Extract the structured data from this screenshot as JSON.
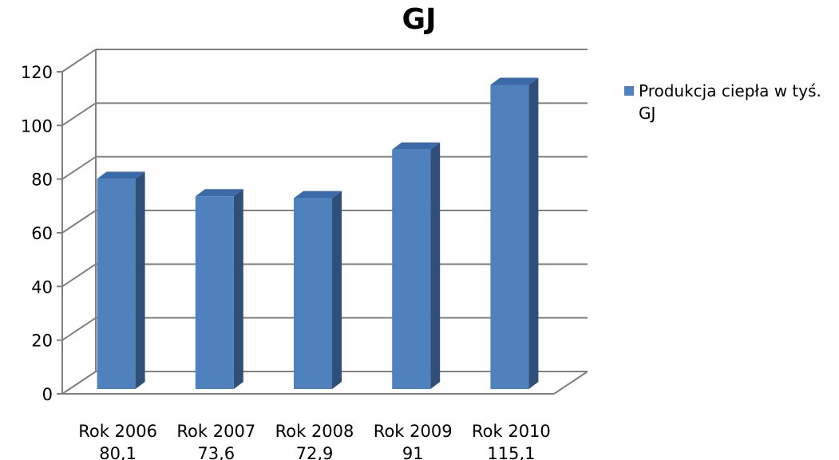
{
  "chart_data": {
    "type": "bar",
    "title": "GJ",
    "categories": [
      "Rok 2006\n80,1",
      "Rok 2007\n73,6",
      "Rok 2008\n72,9",
      "Rok 2009\n91",
      "Rok 2010\n115,1"
    ],
    "series": [
      {
        "name": "Produkcja ciepła w tyś. GJ",
        "values": [
          80.1,
          73.6,
          72.9,
          91,
          115.1
        ]
      }
    ],
    "yticks": [
      "0",
      "20",
      "40",
      "60",
      "80",
      "100",
      "120"
    ],
    "ylim": [
      0,
      120
    ],
    "grid": true,
    "three_d": true,
    "legend_position": "right",
    "colors": {
      "bar_front": "#4f81bd",
      "bar_side": "#2f4f78",
      "bar_top": "#3a6aa8",
      "grid": "#808080"
    }
  },
  "legend": {
    "line1": "Produkcja ciepła w tyś.",
    "line2": "GJ"
  }
}
